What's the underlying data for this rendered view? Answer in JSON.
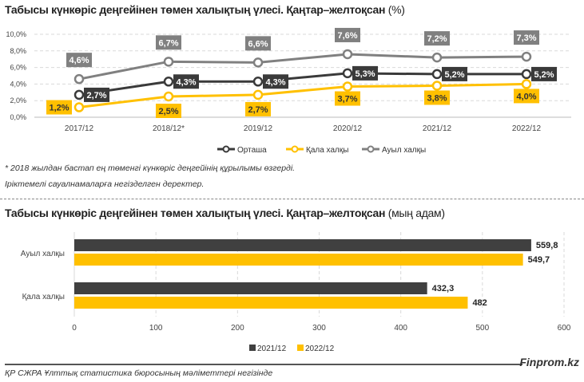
{
  "chart_data": [
    {
      "type": "line",
      "title": "Табысы күнкөріс деңгейінен төмен халықтың үлесі. Қаңтар–желтоқсан",
      "title_unit": "(%)",
      "categories": [
        "2017/12",
        "2018/12*",
        "2019/12",
        "2020/12",
        "2021/12",
        "2022/12"
      ],
      "y_ticks": [
        "0,0%",
        "2,0%",
        "4,0%",
        "6,0%",
        "8,0%",
        "10,0%"
      ],
      "ylim": [
        0,
        10
      ],
      "grid": true,
      "legend_position": "bottom",
      "series": [
        {
          "name": "Орташа",
          "color": "#3a3a3a",
          "values": [
            2.7,
            4.3,
            4.3,
            5.3,
            5.2,
            5.2
          ],
          "labels": [
            "2,7%",
            "4,3%",
            "4,3%",
            "5,3%",
            "5,2%",
            "5,2%"
          ]
        },
        {
          "name": "Қала халқы",
          "color": "#ffc000",
          "values": [
            1.2,
            2.5,
            2.7,
            3.7,
            3.8,
            4.0
          ],
          "labels": [
            "1,2%",
            "2,5%",
            "2,7%",
            "3,7%",
            "3,8%",
            "4,0%"
          ]
        },
        {
          "name": "Ауыл халқы",
          "color": "#808080",
          "values": [
            4.6,
            6.7,
            6.6,
            7.6,
            7.2,
            7.3
          ],
          "labels": [
            "4,6%",
            "6,7%",
            "6,6%",
            "7,6%",
            "7,2%",
            "7,3%"
          ]
        }
      ]
    },
    {
      "type": "bar",
      "orientation": "horizontal",
      "title": "Табысы күнкөріс деңгейінен төмен халықтың үлесі. Қаңтар–желтоқсан",
      "title_unit": "(мың адам)",
      "categories": [
        "Ауыл халқы",
        "Қала халқы"
      ],
      "x_ticks": [
        "0",
        "100",
        "200",
        "300",
        "400",
        "500",
        "600"
      ],
      "xlim": [
        0,
        600
      ],
      "grid": true,
      "legend_position": "bottom",
      "series": [
        {
          "name": "2021/12",
          "color": "#404040",
          "values": [
            559.8,
            432.3
          ],
          "labels": [
            "559,8",
            "432,3"
          ]
        },
        {
          "name": "2022/12",
          "color": "#ffc000",
          "values": [
            549.7,
            482
          ],
          "labels": [
            "549,7",
            "482"
          ]
        }
      ]
    }
  ],
  "notes": {
    "footnote": "* 2018 жылдан бастап ең төменгі күнкөріс деңгейінің құрылымы өзгерді.",
    "sample_note": "Іріктемелі сауалнамаларға негізделген деректер."
  },
  "footer": {
    "brand": "Finprom.kz",
    "source": "ҚР СЖРА Ұлттық статистика бюросының мәліметтері негізінде"
  }
}
